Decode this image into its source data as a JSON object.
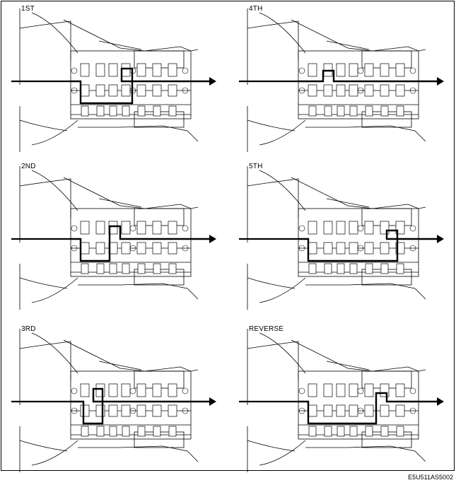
{
  "panels": [
    {
      "label": "1ST",
      "path": [
        [
          100,
          115
        ],
        [
          114,
          115
        ],
        [
          114,
          146
        ],
        [
          187,
          146
        ],
        [
          187,
          97
        ],
        [
          172,
          97
        ],
        [
          172,
          115
        ],
        [
          296,
          115
        ]
      ]
    },
    {
      "label": "2ND",
      "path": [
        [
          100,
          115
        ],
        [
          114,
          115
        ],
        [
          114,
          146
        ],
        [
          155,
          146
        ],
        [
          155,
          97
        ],
        [
          170,
          97
        ],
        [
          170,
          115
        ],
        [
          296,
          115
        ]
      ]
    },
    {
      "label": "3RD",
      "path": [
        [
          100,
          115
        ],
        [
          118,
          115
        ],
        [
          118,
          146
        ],
        [
          145,
          146
        ],
        [
          145,
          97
        ],
        [
          132,
          97
        ],
        [
          132,
          115
        ],
        [
          296,
          115
        ]
      ]
    },
    {
      "label": "4TH",
      "path": [
        [
          100,
          115
        ],
        [
          135,
          115
        ],
        [
          135,
          100
        ],
        [
          150,
          100
        ],
        [
          150,
          115
        ],
        [
          296,
          115
        ]
      ]
    },
    {
      "label": "5TH",
      "path": [
        [
          100,
          115
        ],
        [
          114,
          115
        ],
        [
          114,
          146
        ],
        [
          240,
          146
        ],
        [
          240,
          103
        ],
        [
          225,
          103
        ],
        [
          225,
          115
        ],
        [
          296,
          115
        ]
      ]
    },
    {
      "label": "REVERSE",
      "path": [
        [
          100,
          115
        ],
        [
          114,
          115
        ],
        [
          114,
          146
        ],
        [
          210,
          146
        ],
        [
          210,
          103
        ],
        [
          225,
          103
        ],
        [
          225,
          115
        ],
        [
          296,
          115
        ]
      ]
    }
  ],
  "document_code": "E5U511AS5002"
}
